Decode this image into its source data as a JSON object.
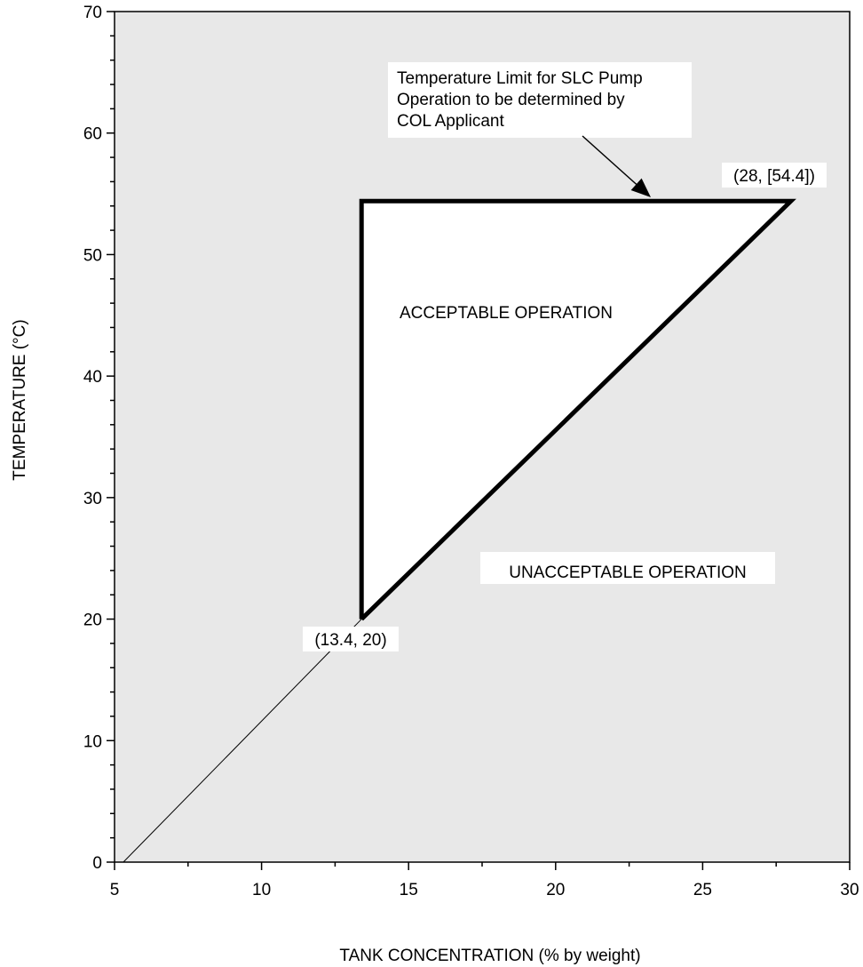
{
  "chart_data": {
    "type": "line",
    "title": "",
    "xlabel": "TANK CONCENTRATION (% by weight)",
    "ylabel": "TEMPERATURE (°C)",
    "xlim": [
      5,
      30
    ],
    "ylim": [
      0,
      70
    ],
    "x_major_ticks": [
      5,
      10,
      15,
      20,
      25,
      30
    ],
    "y_major_ticks": [
      0,
      10,
      20,
      30,
      40,
      50,
      60,
      70
    ],
    "grid": false,
    "background_color": "#e8e8e8",
    "region_fill_color": "#ffffff",
    "boundary": {
      "points": [
        [
          13.4,
          20
        ],
        [
          13.4,
          54.4
        ],
        [
          28,
          54.4
        ],
        [
          13.4,
          20
        ]
      ]
    },
    "extension_line": {
      "points": [
        [
          5.3,
          0
        ],
        [
          13.4,
          20
        ]
      ]
    },
    "annotations": {
      "point_low": "(13.4, 20)",
      "point_high": "(28, [54.4])",
      "region_inside": "ACCEPTABLE OPERATION",
      "region_outside": "UNACCEPTABLE OPERATION",
      "limit_note": [
        "Temperature Limit for SLC Pump",
        "Operation to be determined by",
        "COL Applicant"
      ]
    }
  }
}
